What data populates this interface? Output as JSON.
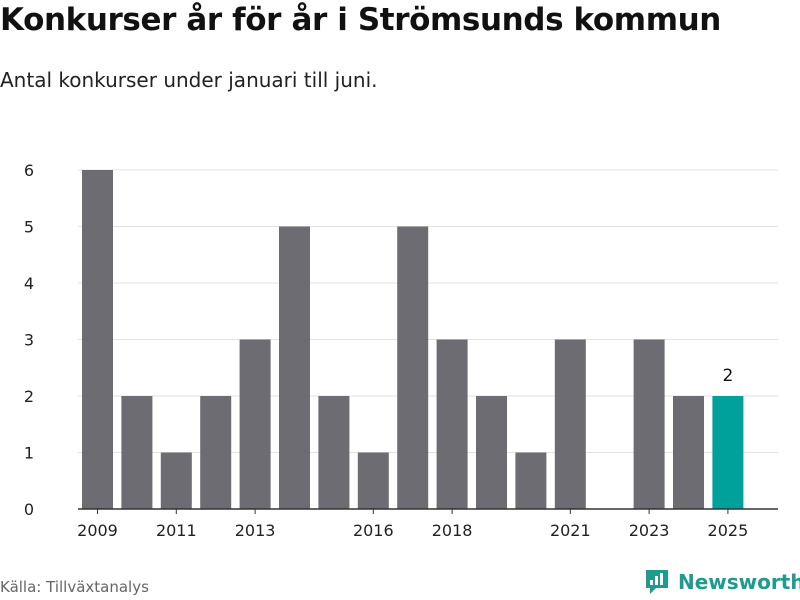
{
  "title": "Konkurser år för år i Strömsunds kommun",
  "subtitle": "Antal konkurser under januari till juni.",
  "source": "Källa: Tillväxtanalys",
  "brand": {
    "name": "Newsworthy"
  },
  "colors": {
    "bar": "#6d6c72",
    "highlight": "#00a19a",
    "grid": "#e2e2e2",
    "axis": "#333333",
    "brand": "#1f9a8e"
  },
  "chart_data": {
    "type": "bar",
    "categories": [
      "2009",
      "2010",
      "2011",
      "2012",
      "2013",
      "2014",
      "2015",
      "2016",
      "2017",
      "2018",
      "2019",
      "2020",
      "2021",
      "2022",
      "2023",
      "2024",
      "2025"
    ],
    "values": [
      6,
      2,
      1,
      2,
      3,
      5,
      2,
      1,
      5,
      3,
      2,
      1,
      3,
      0,
      3,
      2,
      2
    ],
    "xtick_labels": [
      "2009",
      "2011",
      "2013",
      "2016",
      "2018",
      "2021",
      "2023",
      "2025"
    ],
    "ylim": [
      0,
      6
    ],
    "yticks": [
      0,
      1,
      2,
      3,
      4,
      5,
      6
    ],
    "highlight_category": "2025",
    "highlight_label": "2",
    "grid": true,
    "legend": false
  }
}
